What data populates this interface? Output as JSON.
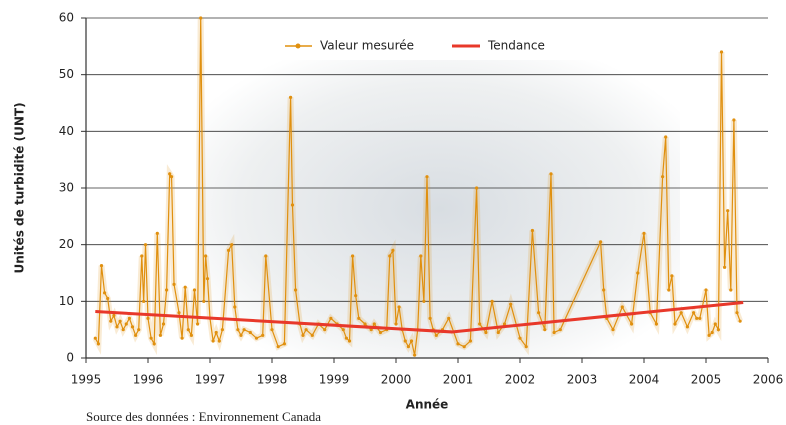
{
  "chart_data": {
    "type": "line",
    "x_label": "Année",
    "y_label": "Unités de turbidité (UNT)",
    "source": "Source des données : Environnement Canada",
    "xlim": [
      1995,
      2006
    ],
    "xticks": [
      1995,
      1996,
      1997,
      1998,
      1999,
      2000,
      2001,
      2002,
      2003,
      2004,
      2005,
      2006
    ],
    "ylim": [
      0,
      60
    ],
    "yticks": [
      0,
      10,
      20,
      30,
      40,
      50,
      60
    ],
    "grid": true,
    "series": [
      {
        "name": "Valeur mesurée",
        "color": "#e0900f",
        "markers": true,
        "x": [
          1995.15,
          1995.2,
          1995.25,
          1995.3,
          1995.35,
          1995.4,
          1995.45,
          1995.5,
          1995.55,
          1995.6,
          1995.65,
          1995.7,
          1995.75,
          1995.8,
          1995.85,
          1995.9,
          1995.93,
          1995.96,
          1996.0,
          1996.05,
          1996.1,
          1996.15,
          1996.2,
          1996.25,
          1996.3,
          1996.35,
          1996.38,
          1996.42,
          1996.5,
          1996.55,
          1996.6,
          1996.65,
          1996.7,
          1996.75,
          1996.8,
          1996.85,
          1996.9,
          1996.93,
          1996.96,
          1997.0,
          1997.05,
          1997.1,
          1997.15,
          1997.2,
          1997.3,
          1997.35,
          1997.4,
          1997.45,
          1997.5,
          1997.55,
          1997.65,
          1997.75,
          1997.85,
          1997.9,
          1998.0,
          1998.1,
          1998.2,
          1998.3,
          1998.33,
          1998.38,
          1998.45,
          1998.5,
          1998.55,
          1998.65,
          1998.75,
          1998.85,
          1998.95,
          1999.05,
          1999.15,
          1999.2,
          1999.25,
          1999.3,
          1999.35,
          1999.4,
          1999.5,
          1999.6,
          1999.65,
          1999.75,
          1999.85,
          1999.9,
          1999.95,
          2000.0,
          2000.05,
          2000.1,
          2000.15,
          2000.2,
          2000.25,
          2000.3,
          2000.35,
          2000.4,
          2000.45,
          2000.5,
          2000.55,
          2000.6,
          2000.65,
          2000.75,
          2000.85,
          2001.0,
          2001.1,
          2001.2,
          2001.3,
          2001.35,
          2001.45,
          2001.55,
          2001.65,
          2001.75,
          2001.85,
          2002.0,
          2002.1,
          2002.2,
          2002.3,
          2002.4,
          2002.5,
          2002.55,
          2002.65,
          2003.3,
          2003.35,
          2003.4,
          2003.5,
          2003.65,
          2003.8,
          2003.9,
          2004.0,
          2004.1,
          2004.2,
          2004.3,
          2004.35,
          2004.4,
          2004.45,
          2004.5,
          2004.6,
          2004.7,
          2004.8,
          2004.85,
          2004.9,
          2005.0,
          2005.05,
          2005.1,
          2005.15,
          2005.2,
          2005.25,
          2005.3,
          2005.35,
          2005.4,
          2005.45,
          2005.5,
          2005.55
        ],
        "values": [
          3.5,
          2.5,
          16.3,
          11.5,
          10.5,
          6.5,
          7.5,
          5.5,
          6.5,
          5,
          6,
          7,
          5.5,
          4,
          5,
          18,
          10,
          20,
          7,
          3.5,
          2.5,
          22,
          4,
          6,
          12,
          32.5,
          32,
          13,
          8,
          3.5,
          12.5,
          5,
          4,
          12,
          6,
          60,
          10,
          18,
          14,
          7,
          3,
          4.5,
          3,
          5,
          19,
          20,
          9,
          5,
          4,
          5,
          4.5,
          3.5,
          4,
          18,
          5,
          2,
          2.5,
          46,
          27,
          12,
          6,
          4,
          5,
          4,
          6,
          5,
          7,
          6,
          5,
          3.5,
          3,
          18,
          11,
          7,
          6,
          5,
          6,
          4.5,
          5,
          18,
          19,
          6,
          9,
          5,
          3,
          2,
          3,
          0.5,
          5,
          18,
          10,
          32,
          7,
          5,
          4,
          5,
          7,
          2.5,
          2,
          3,
          30,
          6,
          4.5,
          10,
          4.5,
          6,
          9.5,
          3.5,
          2,
          22.5,
          8,
          5,
          32.5,
          4.5,
          5,
          20.5,
          12,
          7,
          5,
          9,
          6,
          15,
          22,
          8,
          6,
          32,
          39,
          12,
          14.5,
          6,
          8,
          5.5,
          8,
          7,
          7,
          12,
          4,
          4.5,
          6,
          5,
          54,
          16,
          26,
          12,
          42,
          8,
          6.5
        ]
      },
      {
        "name": "Tendance",
        "color": "#e8382a",
        "markers": false,
        "x": [
          1995.15,
          2000.9,
          2005.6
        ],
        "values": [
          8.2,
          4.6,
          9.8
        ]
      }
    ]
  }
}
